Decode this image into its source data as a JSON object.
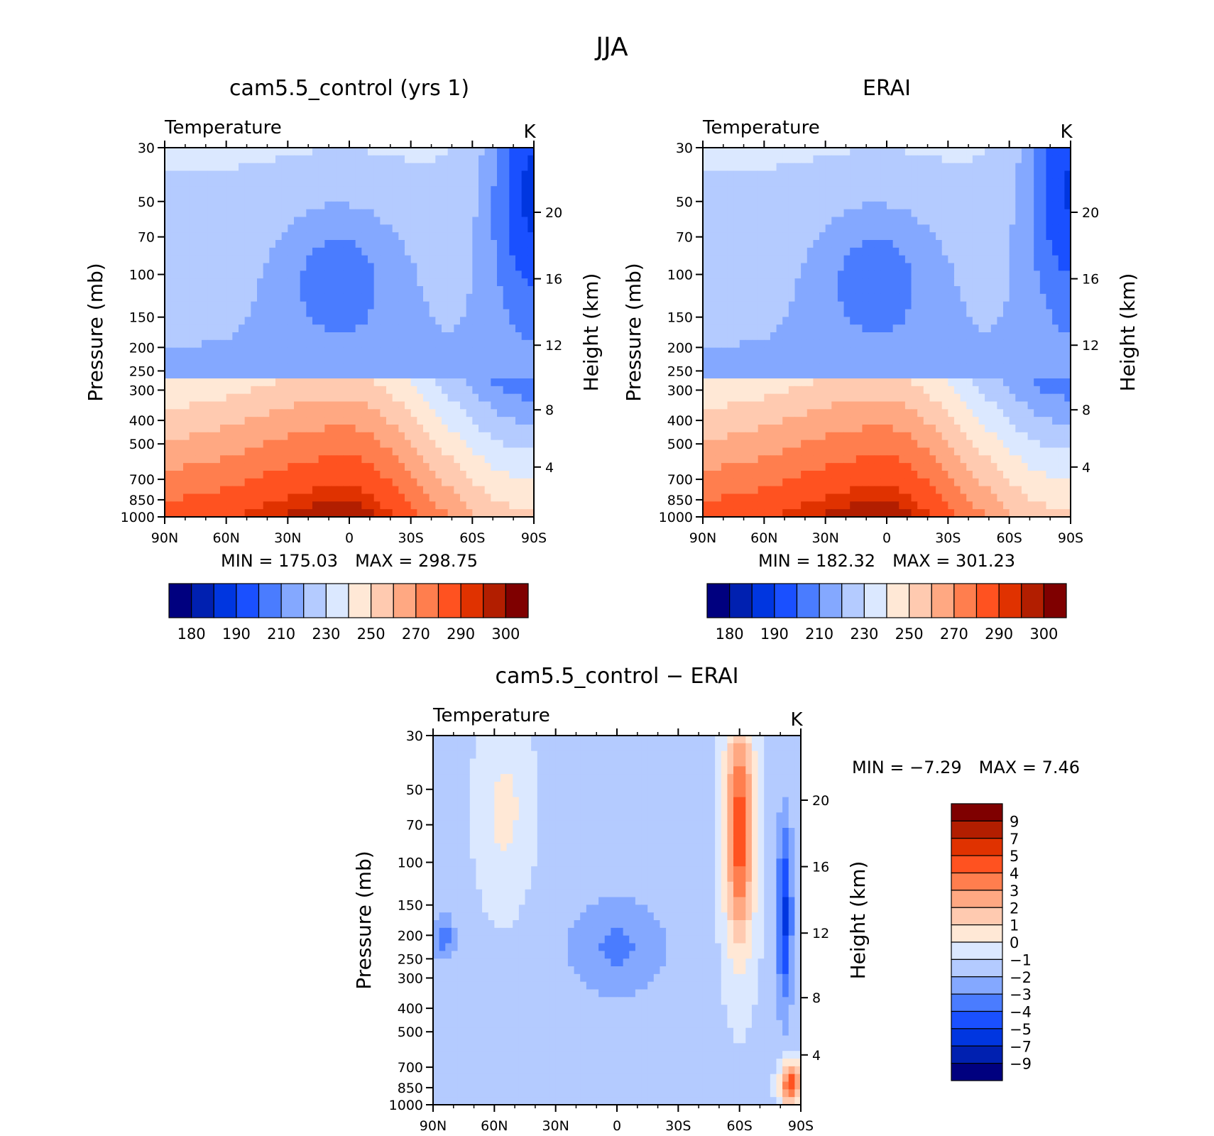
{
  "figure": {
    "title": "JJA"
  },
  "chart_data": [
    {
      "type": "heatmap",
      "id": "model",
      "title": "cam5.5_control (yrs 1)",
      "subtitle": "Temperature",
      "units": "K",
      "ylabel": "Pressure (mb)",
      "ylabel_right": "Height (km)",
      "x_ticks": [
        "90N",
        "60N",
        "30N",
        "0",
        "30S",
        "60S",
        "90S"
      ],
      "y_ticks": [
        "30",
        "50",
        "70",
        "100",
        "150",
        "200",
        "250",
        "300",
        "400",
        "500",
        "700",
        "850",
        "1000"
      ],
      "height_ticks": [
        "20",
        "16",
        "12",
        "8",
        "4"
      ],
      "min_label": "MIN",
      "min": "175.03",
      "max_label": "MAX",
      "max": "298.75",
      "colorbar_labels": [
        "180",
        "190",
        "210",
        "230",
        "250",
        "270",
        "290",
        "300"
      ]
    },
    {
      "type": "heatmap",
      "id": "obs",
      "title": "ERAI",
      "subtitle": "Temperature",
      "units": "K",
      "ylabel": "Pressure (mb)",
      "ylabel_right": "Height (km)",
      "x_ticks": [
        "90N",
        "60N",
        "30N",
        "0",
        "30S",
        "60S",
        "90S"
      ],
      "y_ticks": [
        "30",
        "50",
        "70",
        "100",
        "150",
        "200",
        "250",
        "300",
        "400",
        "500",
        "700",
        "850",
        "1000"
      ],
      "height_ticks": [
        "20",
        "16",
        "12",
        "8",
        "4"
      ],
      "min_label": "MIN",
      "min": "182.32",
      "max_label": "MAX",
      "max": "301.23",
      "colorbar_labels": [
        "180",
        "190",
        "210",
        "230",
        "250",
        "270",
        "290",
        "300"
      ]
    },
    {
      "type": "heatmap",
      "id": "diff",
      "title": "cam5.5_control − ERAI",
      "subtitle": "Temperature",
      "units": "K",
      "ylabel": "Pressure (mb)",
      "ylabel_right": "Height (km)",
      "x_ticks": [
        "90N",
        "60N",
        "30N",
        "0",
        "30S",
        "60S",
        "90S"
      ],
      "y_ticks": [
        "30",
        "50",
        "70",
        "100",
        "150",
        "200",
        "250",
        "300",
        "400",
        "500",
        "700",
        "850",
        "1000"
      ],
      "height_ticks": [
        "20",
        "16",
        "12",
        "8",
        "4"
      ],
      "min_label": "MIN",
      "min": "−7.29",
      "max_label": "MAX",
      "max": "7.46",
      "colorbar_labels": [
        "9",
        "7",
        "5",
        "4",
        "3",
        "2",
        "1",
        "0",
        "−1",
        "−2",
        "−3",
        "−4",
        "−5",
        "−7",
        "−9"
      ]
    }
  ],
  "colors": {
    "abs_scale": [
      "#00007f",
      "#0020b0",
      "#0036e0",
      "#1a50ff",
      "#4a7cff",
      "#84a8ff",
      "#b4cbff",
      "#dbe8ff",
      "#ffe8d6",
      "#ffcab0",
      "#ffa882",
      "#ff7e4e",
      "#ff5220",
      "#e03200",
      "#b21e00",
      "#7f0000"
    ],
    "diff_scale": [
      "#7f0000",
      "#b21e00",
      "#e03200",
      "#ff5220",
      "#ff7e4e",
      "#ffa882",
      "#ffcab0",
      "#ffe8d6",
      "#dbe8ff",
      "#b4cbff",
      "#84a8ff",
      "#4a7cff",
      "#1a50ff",
      "#0036e0",
      "#0020b0",
      "#00007f"
    ]
  }
}
